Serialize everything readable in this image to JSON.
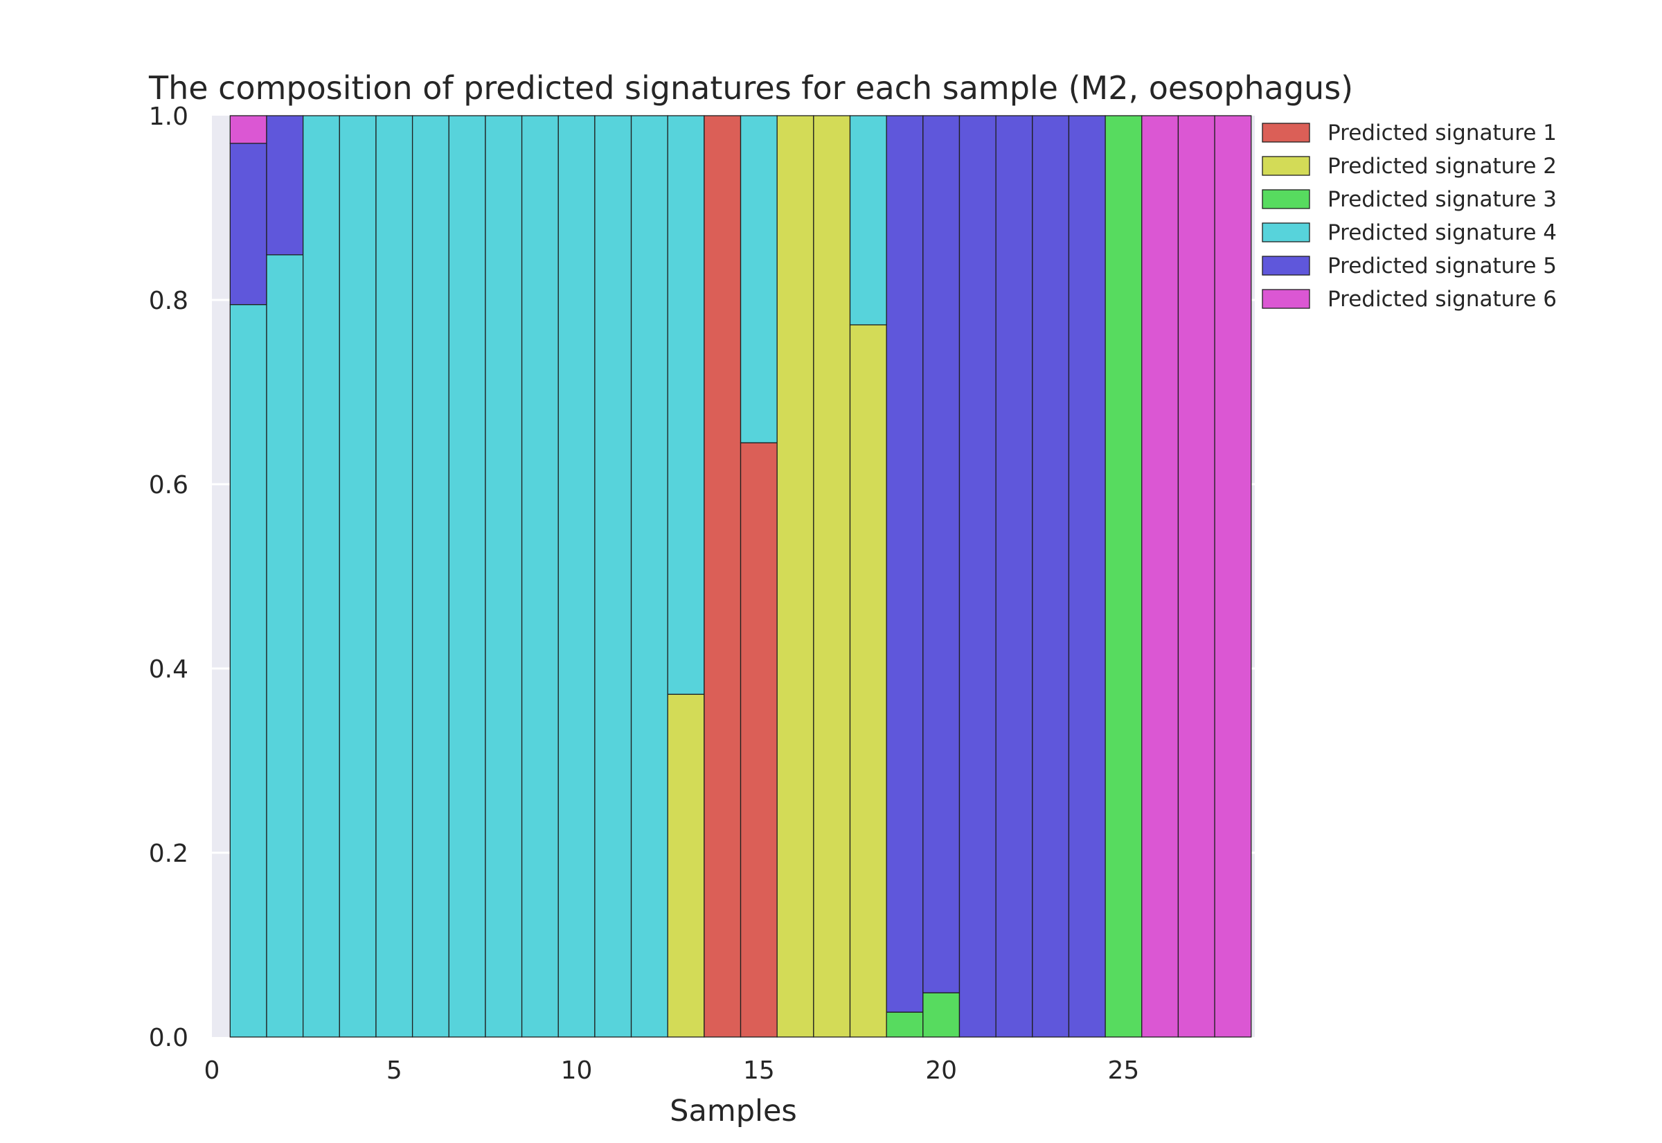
{
  "chart_data": {
    "type": "bar",
    "stacked": true,
    "title": "The composition of predicted signatures for each sample (M2, oesophagus)",
    "xlabel": "Samples",
    "ylabel": "",
    "xlim": [
      0,
      28.6
    ],
    "ylim": [
      0,
      1.0
    ],
    "x_ticks": [
      0,
      5,
      10,
      15,
      20,
      25
    ],
    "y_ticks": [
      0.0,
      0.2,
      0.4,
      0.6,
      0.8,
      1.0
    ],
    "x_tick_labels": [
      "0",
      "5",
      "10",
      "15",
      "20",
      "25"
    ],
    "y_tick_labels": [
      "0.0",
      "0.2",
      "0.4",
      "0.6",
      "0.8",
      "1.0"
    ],
    "legend_position": "upper-right-outside",
    "grid": true,
    "background": "#eaeaf2",
    "categories": [
      1,
      2,
      3,
      4,
      5,
      6,
      7,
      8,
      9,
      10,
      11,
      12,
      13,
      14,
      15,
      16,
      17,
      18,
      19,
      20,
      21,
      22,
      23,
      24,
      25,
      26,
      27,
      28
    ],
    "series": [
      {
        "name": "Predicted signature 1",
        "color": "#db5f57",
        "values": [
          0,
          0,
          0,
          0,
          0,
          0,
          0,
          0,
          0,
          0,
          0,
          0,
          0,
          1.0,
          0.645,
          0,
          0,
          0,
          0,
          0,
          0,
          0,
          0,
          0,
          0,
          0,
          0,
          0
        ]
      },
      {
        "name": "Predicted signature 2",
        "color": "#d3db57",
        "values": [
          0,
          0,
          0,
          0,
          0,
          0,
          0,
          0,
          0,
          0,
          0,
          0,
          0.372,
          0,
          0,
          1.0,
          1.0,
          0.773,
          0,
          0,
          0,
          0,
          0,
          0,
          0,
          0,
          0,
          0
        ]
      },
      {
        "name": "Predicted signature 3",
        "color": "#57db5f",
        "values": [
          0,
          0,
          0,
          0,
          0,
          0,
          0,
          0,
          0,
          0,
          0,
          0,
          0,
          0,
          0,
          0,
          0,
          0,
          0.027,
          0.048,
          0,
          0,
          0,
          0,
          1.0,
          0,
          0,
          0
        ]
      },
      {
        "name": "Predicted signature 4",
        "color": "#57d3db",
        "values": [
          0.795,
          0.849,
          1.0,
          1.0,
          1.0,
          1.0,
          1.0,
          1.0,
          1.0,
          1.0,
          1.0,
          1.0,
          0.628,
          0,
          0.355,
          0,
          0,
          0.227,
          0,
          0,
          0,
          0,
          0,
          0,
          0,
          0,
          0,
          0
        ]
      },
      {
        "name": "Predicted signature 5",
        "color": "#5f57db",
        "values": [
          0.175,
          0.151,
          0,
          0,
          0,
          0,
          0,
          0,
          0,
          0,
          0,
          0,
          0,
          0,
          0,
          0,
          0,
          0,
          0.973,
          0.952,
          1.0,
          1.0,
          1.0,
          1.0,
          0,
          0,
          0,
          0
        ]
      },
      {
        "name": "Predicted signature 6",
        "color": "#db57d3",
        "values": [
          0.03,
          0,
          0,
          0,
          0,
          0,
          0,
          0,
          0,
          0,
          0,
          0,
          0,
          0,
          0,
          0,
          0,
          0,
          0,
          0,
          0,
          0,
          0,
          0,
          0,
          1.0,
          1.0,
          1.0
        ]
      }
    ]
  }
}
